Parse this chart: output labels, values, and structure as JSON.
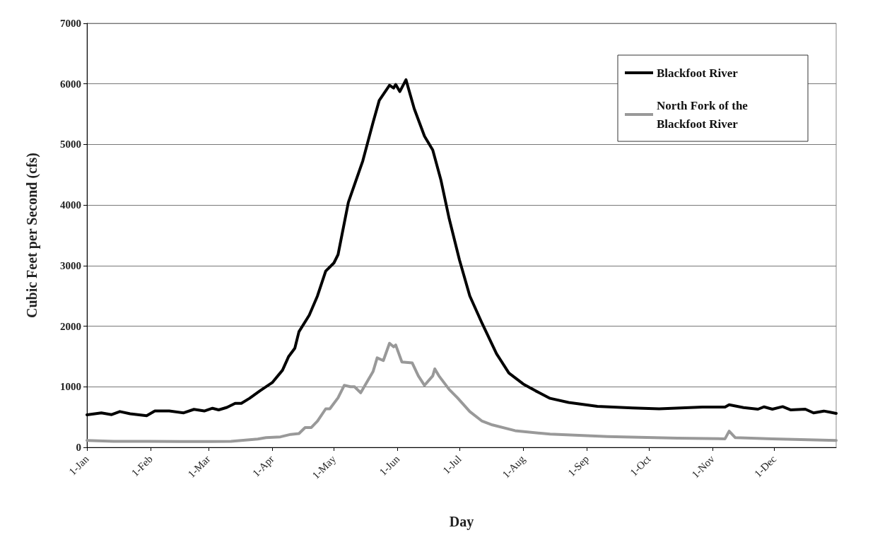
{
  "chart_data": {
    "type": "line",
    "xlabel": "Day",
    "ylabel": "Cubic Feet per Second (cfs)",
    "xlim": [
      "--01-01",
      "--12-31"
    ],
    "xticks": [
      {
        "value": "--01-01",
        "label": "1-Jan"
      },
      {
        "value": "--02-01",
        "label": "1-Feb"
      },
      {
        "value": "--03-01",
        "label": "1-Mar"
      },
      {
        "value": "--04-01",
        "label": "1-Apr"
      },
      {
        "value": "--05-01",
        "label": "1-May"
      },
      {
        "value": "--06-01",
        "label": "1-Jun"
      },
      {
        "value": "--07-01",
        "label": "1-Jul"
      },
      {
        "value": "--08-01",
        "label": "1-Aug"
      },
      {
        "value": "--09-01",
        "label": "1-Sep"
      },
      {
        "value": "--10-01",
        "label": "1-Oct"
      },
      {
        "value": "--11-01",
        "label": "1-Nov"
      },
      {
        "value": "--12-01",
        "label": "1-Dec"
      }
    ],
    "ylim": [
      0,
      7000
    ],
    "yticks": [
      0,
      1000,
      2000,
      3000,
      4000,
      5000,
      6000,
      7000
    ],
    "grid": "y",
    "legend": "top right",
    "marker": "none",
    "line_style": "solid",
    "series": [
      {
        "name": "Blackfoot River",
        "color": "#000000",
        "x": [
          "--01-01",
          "--01-08",
          "--01-13",
          "--01-17",
          "--01-22",
          "--01-30",
          "--02-03",
          "--02-10",
          "--02-17",
          "--02-22",
          "--02-27",
          "--03-03",
          "--03-06",
          "--03-10",
          "--03-14",
          "--03-17",
          "--03-21",
          "--03-26",
          "--04-01",
          "--04-06",
          "--04-09",
          "--04-12",
          "--04-14",
          "--04-19",
          "--04-23",
          "--04-27",
          "--05-01",
          "--05-03",
          "--05-08",
          "--05-15",
          "--05-20",
          "--05-23",
          "--05-28",
          "--05-30",
          "--05-31",
          "--06-02",
          "--06-05",
          "--06-09",
          "--06-14",
          "--06-18",
          "--06-22",
          "--06-26",
          "--07-01",
          "--07-06",
          "--07-12",
          "--07-19",
          "--07-25",
          "--08-01",
          "--08-07",
          "--08-14",
          "--08-23",
          "--09-06",
          "--09-23",
          "--10-06",
          "--10-27",
          "--11-07",
          "--11-09",
          "--11-16",
          "--11-23",
          "--11-26",
          "--11-30",
          "--12-05",
          "--12-09",
          "--12-16",
          "--12-20",
          "--12-25",
          "--12-28",
          "--12-31"
        ],
        "values": [
          536,
          568,
          540,
          591,
          555,
          523,
          600,
          600,
          570,
          627,
          600,
          645,
          618,
          659,
          727,
          727,
          809,
          932,
          1068,
          1273,
          1500,
          1636,
          1909,
          2182,
          2500,
          2909,
          3045,
          3182,
          4045,
          4727,
          5364,
          5727,
          5977,
          5932,
          5991,
          5873,
          6068,
          5591,
          5136,
          4909,
          4409,
          3773,
          3091,
          2500,
          2045,
          1545,
          1227,
          1045,
          932,
          809,
          740,
          676,
          649,
          637,
          664,
          664,
          702,
          656,
          630,
          668,
          630,
          672,
          618,
          630,
          569,
          599,
          580,
          561
        ]
      },
      {
        "name": "North Fork of the Blackfoot River",
        "color": "#999999",
        "x": [
          "--01-01",
          "--01-14",
          "--01-31",
          "--03-02",
          "--03-12",
          "--03-25",
          "--03-29",
          "--04-05",
          "--04-10",
          "--04-14",
          "--04-17",
          "--04-20",
          "--04-23",
          "--04-27",
          "--04-29",
          "--05-03",
          "--05-06",
          "--05-09",
          "--05-11",
          "--05-14",
          "--05-20",
          "--05-22",
          "--05-25",
          "--05-28",
          "--05-30",
          "--05-31",
          "--06-03",
          "--06-08",
          "--06-11",
          "--06-14",
          "--06-18",
          "--06-19",
          "--06-21",
          "--06-26",
          "--06-30",
          "--07-06",
          "--07-12",
          "--07-17",
          "--07-28",
          "--08-14",
          "--09-11",
          "--10-15",
          "--11-07",
          "--11-09",
          "--11-12",
          "--11-30",
          "--12-31"
        ],
        "values": [
          115,
          100,
          100,
          95,
          100,
          136,
          160,
          173,
          214,
          227,
          327,
          327,
          432,
          636,
          636,
          818,
          1023,
          1000,
          1000,
          900,
          1250,
          1477,
          1432,
          1718,
          1660,
          1690,
          1410,
          1395,
          1180,
          1023,
          1180,
          1295,
          1180,
          955,
          818,
          590,
          432,
          370,
          275,
          218,
          179,
          153,
          141,
          267,
          160,
          141,
          115
        ]
      }
    ]
  }
}
